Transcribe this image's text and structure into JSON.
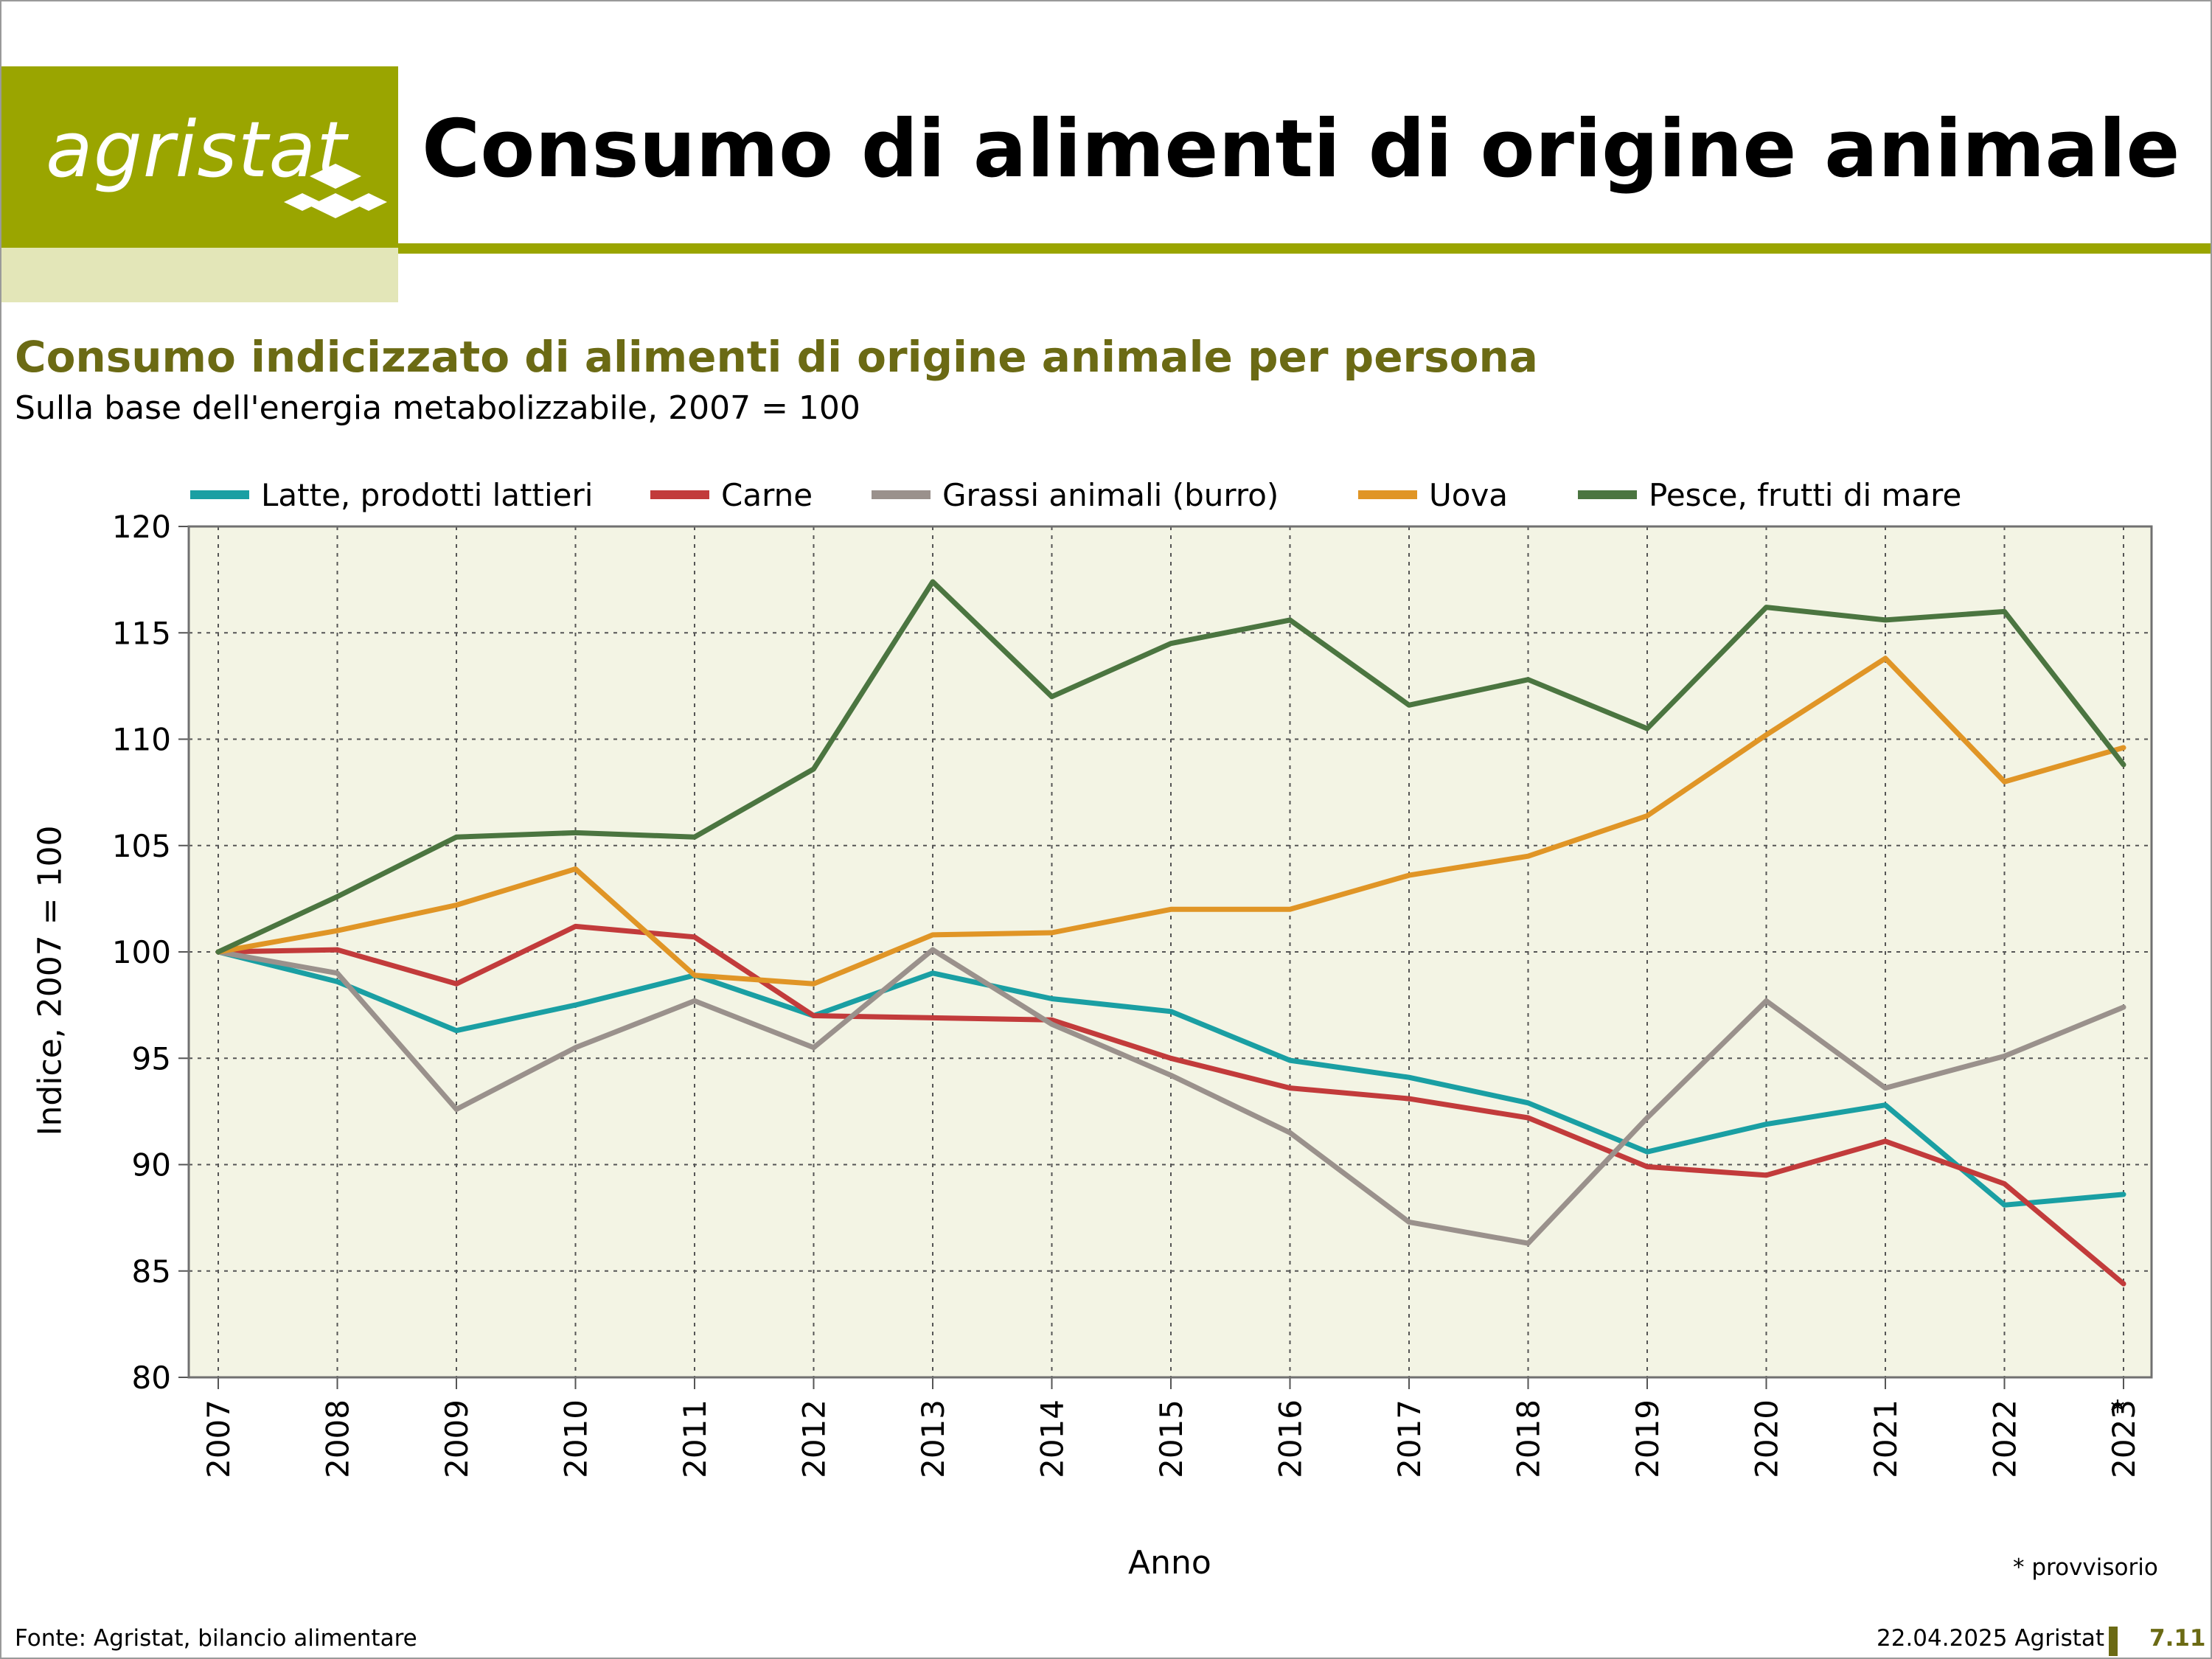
{
  "header": {
    "logo_text": "agristat",
    "title": "Consumo di alimenti di origine animale"
  },
  "chart_header": {
    "title": "Consumo indicizzato di alimenti di origine animale per persona",
    "subtitle": "Sulla base dell'energia metabolizzabile, 2007 = 100"
  },
  "colors": {
    "accent": "#9aa500",
    "accent_light": "#e3e6b8",
    "title_olive": "#6b6a14",
    "plot_bg": "#f3f4e4"
  },
  "chart_data": {
    "type": "line",
    "x": [
      2007,
      2008,
      2009,
      2010,
      2011,
      2012,
      2013,
      2014,
      2015,
      2016,
      2017,
      2018,
      2019,
      2020,
      2021,
      2022,
      2023
    ],
    "x_tick_labels": [
      "2007",
      "2008",
      "2009",
      "2010",
      "2011",
      "2012",
      "2013",
      "2014",
      "2015",
      "2016",
      "2017",
      "2018",
      "2019",
      "2020",
      "2021",
      "2022",
      "2023"
    ],
    "xlabel": "Anno",
    "ylabel": "Indice, 2007 = 100",
    "ylim": [
      80,
      120
    ],
    "y_ticks": [
      80,
      85,
      90,
      95,
      100,
      105,
      110,
      115,
      120
    ],
    "grid": true,
    "legend_position": "top",
    "provisional_marker": "*",
    "footnote": "* provvisorio",
    "series": [
      {
        "name": "Latte, prodotti lattieri",
        "color": "#1a9fa3",
        "values": [
          100,
          98.6,
          96.3,
          97.5,
          98.9,
          97.0,
          99.0,
          97.8,
          97.2,
          94.9,
          94.1,
          92.9,
          90.6,
          91.9,
          92.8,
          88.1,
          88.6
        ]
      },
      {
        "name": "Carne",
        "color": "#c23b3b",
        "values": [
          100,
          100.1,
          98.5,
          101.2,
          100.7,
          97.0,
          96.9,
          96.8,
          95.0,
          93.6,
          93.1,
          92.2,
          89.9,
          89.5,
          91.1,
          89.1,
          84.4
        ]
      },
      {
        "name": "Grassi animali (burro)",
        "color": "#9a918c",
        "values": [
          100,
          99.0,
          92.6,
          95.5,
          97.7,
          95.5,
          100.1,
          96.6,
          94.2,
          91.5,
          87.3,
          86.3,
          92.2,
          97.7,
          93.6,
          95.1,
          97.4
        ]
      },
      {
        "name": "Uova",
        "color": "#e09526",
        "values": [
          100,
          101.0,
          102.2,
          103.9,
          98.9,
          98.5,
          100.8,
          100.9,
          102.0,
          102.0,
          103.6,
          104.5,
          106.4,
          110.2,
          113.8,
          108.0,
          109.6
        ]
      },
      {
        "name": "Pesce, frutti di mare",
        "color": "#4b7540",
        "values": [
          100,
          102.6,
          105.4,
          105.6,
          105.4,
          108.6,
          117.4,
          112.0,
          114.5,
          115.6,
          111.6,
          112.8,
          110.5,
          116.2,
          115.6,
          116.0,
          108.8
        ]
      }
    ]
  },
  "footer": {
    "source": "Fonte: Agristat, bilancio alimentare",
    "date": "22.04.2025 Agristat",
    "page": "7.11"
  }
}
